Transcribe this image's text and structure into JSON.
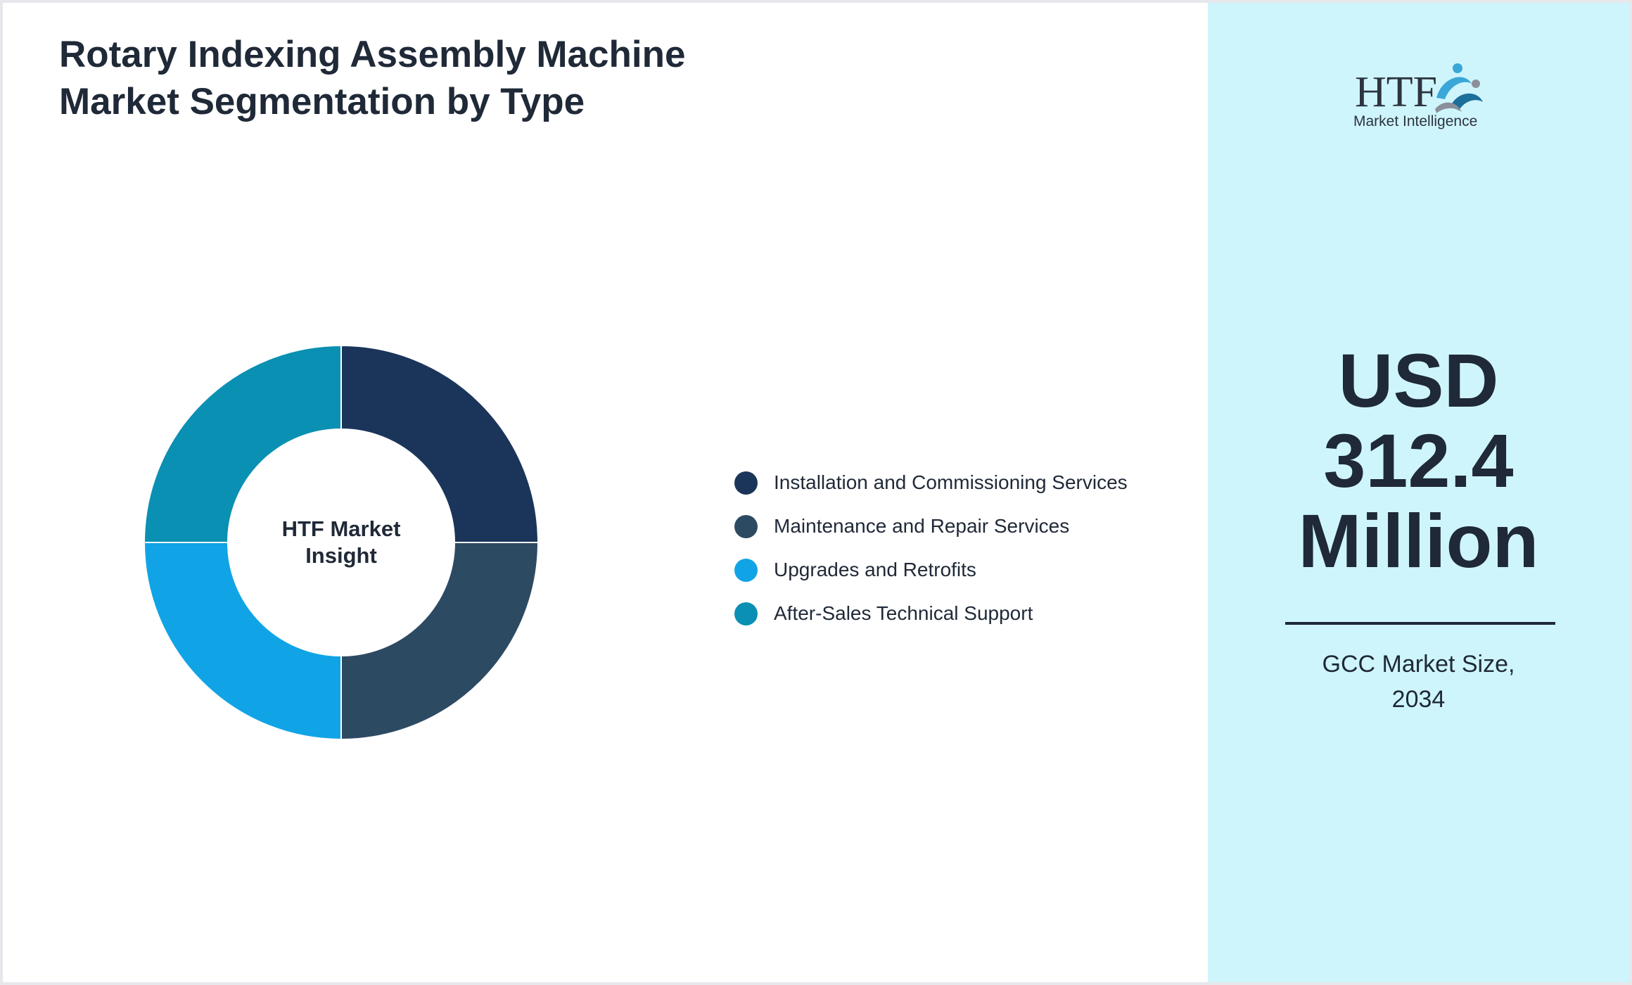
{
  "chart_data": {
    "type": "pie",
    "title": "Rotary Indexing Assembly Machine Market Segmentation by Type",
    "center_label_lines": [
      "HTF Market",
      "Insight"
    ],
    "categories": [
      "Installation and Commissioning Services",
      "Maintenance and Repair Services",
      "Upgrades and Retrofits",
      "After-Sales Technical Support"
    ],
    "values": [
      25,
      25,
      25,
      25
    ],
    "colors": [
      "#1b355a",
      "#2d4a63",
      "#10a4e6",
      "#0a90b2"
    ],
    "legend_position": "right"
  },
  "logo": {
    "letters": "HTF",
    "tagline": "Market Intelligence",
    "icon": "people-swirl-icon"
  },
  "summary": {
    "value_lines": [
      "USD",
      "312.4",
      "Million"
    ],
    "subtitle_lines": [
      "GCC Market Size,",
      "2034"
    ]
  },
  "colors": {
    "side_panel": "#cff5fc",
    "text": "#1f2937",
    "logo_blue": "#3aa7d8",
    "logo_grey": "#8a8f99"
  }
}
